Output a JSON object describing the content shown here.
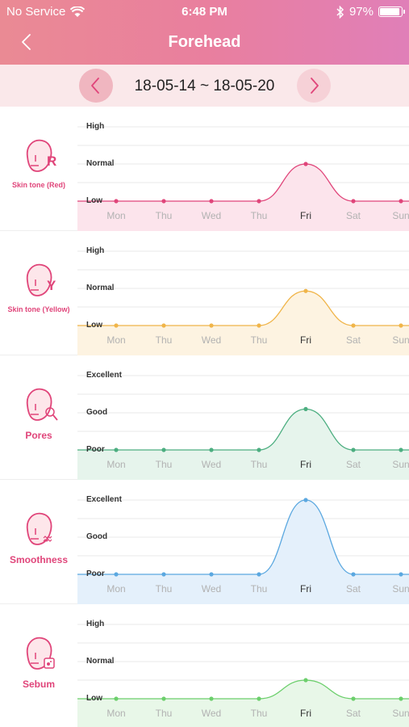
{
  "status_bar": {
    "carrier": "No Service",
    "time": "6:48 PM",
    "battery": "97%"
  },
  "nav": {
    "title": "Forehead"
  },
  "date_bar": {
    "range": "18-05-14 ~ 18-05-20"
  },
  "days": [
    "Mon",
    "Thu",
    "Wed",
    "Thu",
    "Fri",
    "Sat",
    "Sun"
  ],
  "selected_day_index": 4,
  "metrics": [
    {
      "label": "Skin tone (Red)",
      "icon": "face-red-icon",
      "icon_letter": "R",
      "levels": [
        "High",
        "Normal",
        "Low"
      ],
      "color": "#e0457a",
      "fill": "#fce4ec",
      "values": [
        0,
        0,
        0,
        0,
        1,
        0,
        0
      ]
    },
    {
      "label": "Skin tone (Yellow)",
      "icon": "face-yellow-icon",
      "icon_letter": "Y",
      "levels": [
        "High",
        "Normal",
        "Low"
      ],
      "color": "#f0b54a",
      "fill": "#fdf3e1",
      "values": [
        0,
        0,
        0,
        0,
        0.93,
        0,
        0
      ]
    },
    {
      "label": "Pores",
      "icon": "face-pores-icon",
      "icon_letter": "",
      "levels": [
        "Excellent",
        "Good",
        "Poor"
      ],
      "color": "#4cae80",
      "fill": "#e6f4ec",
      "values": [
        0,
        0,
        0,
        0,
        1.1,
        0,
        0
      ]
    },
    {
      "label": "Smoothness",
      "icon": "face-smoothness-icon",
      "icon_letter": "",
      "levels": [
        "Excellent",
        "Good",
        "Poor"
      ],
      "color": "#5ba8e0",
      "fill": "#e4f0fb",
      "values": [
        0,
        0,
        0,
        0,
        2,
        0,
        0
      ]
    },
    {
      "label": "Sebum",
      "icon": "face-sebum-icon",
      "icon_letter": "",
      "levels": [
        "High",
        "Normal",
        "Low"
      ],
      "color": "#6ccf6c",
      "fill": "#e8f7e8",
      "values": [
        0,
        0,
        0,
        0,
        0.5,
        0,
        0
      ]
    }
  ]
}
